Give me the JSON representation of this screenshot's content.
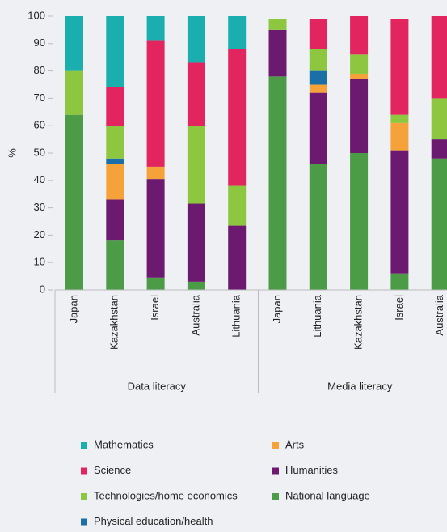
{
  "chart_data": {
    "type": "bar",
    "stacked": true,
    "ylabel": "%",
    "groups": [
      {
        "label": "Data literacy",
        "categories": [
          "Japan",
          "Kazakhstan",
          "Israel",
          "Australia",
          "Lithuania"
        ]
      },
      {
        "label": "Media literacy",
        "categories": [
          "Japan",
          "Lithuania",
          "Kazakhstan",
          "Israel",
          "Australia"
        ]
      }
    ],
    "series": [
      {
        "name": "National language",
        "color": "#4b9b47",
        "values": [
          64,
          18,
          4.5,
          3,
          0,
          78,
          46,
          50,
          6,
          48
        ]
      },
      {
        "name": "Humanities",
        "color": "#6b1a6f",
        "values": [
          0,
          15,
          36,
          28.5,
          23.5,
          17,
          26,
          27,
          45,
          7
        ]
      },
      {
        "name": "Arts",
        "color": "#f5a23b",
        "values": [
          0,
          13,
          4.5,
          0,
          0,
          0,
          3,
          2,
          10,
          0
        ]
      },
      {
        "name": "Physical education/health",
        "color": "#1a70a6",
        "values": [
          0,
          2,
          0,
          0,
          0,
          0,
          5,
          0,
          0,
          0
        ]
      },
      {
        "name": "Technologies/home economics",
        "color": "#8dc63f",
        "values": [
          16,
          12,
          0,
          28.5,
          14.5,
          4,
          8,
          7,
          3,
          15
        ]
      },
      {
        "name": "Science",
        "color": "#e2245f",
        "values": [
          0,
          14,
          46,
          23,
          50,
          0,
          11,
          14,
          35,
          30
        ]
      },
      {
        "name": "Mathematics",
        "color": "#1aafae",
        "values": [
          20,
          26,
          9,
          17,
          12,
          0,
          0,
          0,
          0,
          0
        ]
      }
    ],
    "ylim": [
      0,
      100
    ],
    "yticks": [
      0,
      10,
      20,
      30,
      40,
      50,
      60,
      70,
      80,
      90,
      100
    ]
  }
}
